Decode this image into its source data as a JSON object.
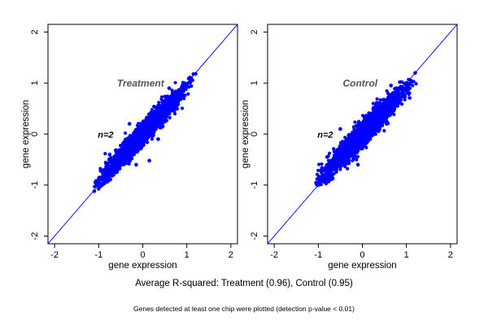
{
  "captions": {
    "main": "Average R-squared: Treatment (0.96), Control (0.95)",
    "note": "Genes detected at least one chip were plotted (detection p-value < 0.01)"
  },
  "chart_data": [
    {
      "type": "scatter",
      "title": "Treatment",
      "annotation": "n=2",
      "xlabel": "gene expression",
      "ylabel": "gene expression",
      "xlim": [
        -2.15,
        2.15
      ],
      "ylim": [
        -2.15,
        2.15
      ],
      "xticks": [
        -2,
        -1,
        0,
        1,
        2
      ],
      "yticks": [
        -2,
        -1,
        0,
        1,
        2
      ],
      "reference_line": {
        "slope": 1,
        "intercept": 0
      },
      "point_cloud": {
        "x_range": [
          -1.1,
          1.2
        ],
        "y_range": [
          -1.15,
          1.2
        ],
        "center": [
          0,
          0
        ],
        "correlation": 0.96
      },
      "points": [
        [
          -1.1,
          -1.12
        ],
        [
          -1.05,
          -1.0
        ],
        [
          -0.95,
          -0.85
        ],
        [
          -0.8,
          -0.9
        ],
        [
          -0.7,
          -0.6
        ],
        [
          -0.6,
          -0.75
        ],
        [
          -0.5,
          -0.45
        ],
        [
          -0.45,
          -0.2
        ],
        [
          -0.4,
          -0.55
        ],
        [
          -0.3,
          -0.3
        ],
        [
          -0.25,
          -0.1
        ],
        [
          -0.2,
          -0.4
        ],
        [
          -0.1,
          0.0
        ],
        [
          -0.05,
          -0.2
        ],
        [
          0.0,
          0.1
        ],
        [
          0.05,
          -0.1
        ],
        [
          0.1,
          0.2
        ],
        [
          0.15,
          -0.52
        ],
        [
          0.2,
          0.3
        ],
        [
          0.25,
          0.05
        ],
        [
          0.3,
          0.45
        ],
        [
          0.4,
          0.35
        ],
        [
          0.5,
          0.55
        ],
        [
          0.6,
          0.5
        ],
        [
          0.7,
          0.75
        ],
        [
          0.8,
          0.7
        ],
        [
          0.9,
          0.95
        ],
        [
          1.0,
          0.95
        ],
        [
          1.1,
          1.1
        ],
        [
          1.2,
          1.18
        ],
        [
          -0.3,
          0.2
        ],
        [
          0.35,
          -0.1
        ],
        [
          -0.15,
          -0.6
        ],
        [
          0.6,
          0.9
        ],
        [
          -0.75,
          -0.4
        ]
      ],
      "color": "#0000ff",
      "line_color": "#0000ff",
      "label_color": "#555555"
    },
    {
      "type": "scatter",
      "title": "Control",
      "annotation": "n=2",
      "xlabel": "gene expression",
      "ylabel": "gene expression",
      "xlim": [
        -2.15,
        2.15
      ],
      "ylim": [
        -2.15,
        2.15
      ],
      "xticks": [
        -2,
        -1,
        0,
        1,
        2
      ],
      "yticks": [
        -2,
        -1,
        0,
        1,
        2
      ],
      "reference_line": {
        "slope": 1,
        "intercept": 0
      },
      "point_cloud": {
        "x_range": [
          -1.05,
          1.25
        ],
        "y_range": [
          -1.0,
          1.2
        ],
        "center": [
          0,
          0
        ],
        "correlation": 0.95
      },
      "points": [
        [
          -1.05,
          -0.95
        ],
        [
          -1.0,
          -1.0
        ],
        [
          -0.9,
          -0.8
        ],
        [
          -0.8,
          -0.9
        ],
        [
          -0.7,
          -0.55
        ],
        [
          -0.6,
          -0.7
        ],
        [
          -0.5,
          -0.4
        ],
        [
          -0.45,
          -0.15
        ],
        [
          -0.4,
          -0.55
        ],
        [
          -0.3,
          -0.25
        ],
        [
          -0.2,
          0.0
        ],
        [
          -0.2,
          -0.4
        ],
        [
          -0.1,
          0.05
        ],
        [
          -0.05,
          -0.2
        ],
        [
          0.0,
          0.1
        ],
        [
          0.05,
          -0.15
        ],
        [
          0.1,
          0.25
        ],
        [
          0.2,
          0.4
        ],
        [
          0.25,
          0.0
        ],
        [
          0.3,
          0.4
        ],
        [
          0.4,
          0.35
        ],
        [
          0.5,
          0.55
        ],
        [
          0.55,
          0.2
        ],
        [
          0.6,
          0.7
        ],
        [
          0.7,
          0.6
        ],
        [
          0.8,
          0.85
        ],
        [
          0.9,
          0.8
        ],
        [
          1.0,
          1.0
        ],
        [
          1.1,
          1.05
        ],
        [
          1.2,
          1.2
        ],
        [
          -0.5,
          0.1
        ],
        [
          0.15,
          0.35
        ],
        [
          -0.1,
          -0.6
        ],
        [
          0.65,
          0.95
        ],
        [
          -0.8,
          -0.45
        ]
      ],
      "color": "#0000ff",
      "line_color": "#0000ff",
      "label_color": "#555555"
    }
  ]
}
